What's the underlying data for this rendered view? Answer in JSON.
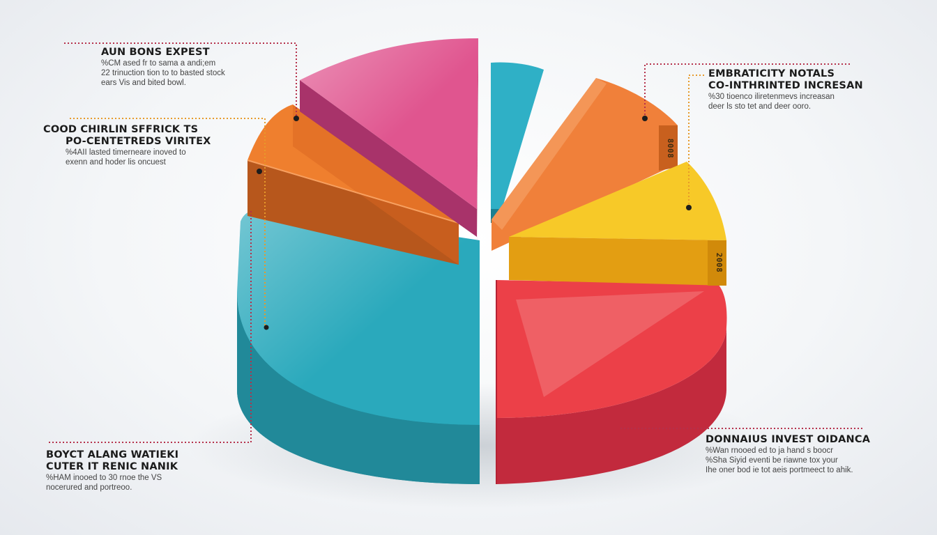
{
  "chart_data": {
    "type": "pie",
    "title": "",
    "style": "3d-exploded",
    "slices": [
      {
        "label": "AUN BONS EXPEST",
        "color": "#e0558f",
        "value": 12
      },
      {
        "label": "",
        "color": "#2fb0c6",
        "value": 3
      },
      {
        "label": "EMBRATICITY NOTALS CO-INTHRINTED INCRESAN",
        "color": "#f0803a",
        "value": 8,
        "side_label": "8008"
      },
      {
        "label": "",
        "color": "#f7c928",
        "value": 10,
        "side_label": "2008"
      },
      {
        "label": "DONNAIUS INVEST OIDANCA",
        "color": "#ec4048",
        "value": 25
      },
      {
        "label": "BOYCT ALANG WATIEKI CUTER IT RENIC NANIK",
        "color": "#2aa9bc",
        "value": 30
      },
      {
        "label": "COOD CHIRLIN SFFRICK TS PO-CENTETREDS VIRITEX",
        "color": "#ef7f2e",
        "value": 12
      }
    ],
    "legend": "callouts-around"
  },
  "callouts": {
    "top_left": {
      "title": "AUN BONS EXPEST",
      "lines": [
        "%CM ased fr to sama a andi;em",
        "22 trinuction tion to to basted stock",
        "ears Vis and bited bowl."
      ]
    },
    "mid_left": {
      "title1": "COOD CHIRLIN SFFRICK TS",
      "title2": "PO-CENTETREDS VIRITEX",
      "lines": [
        "%4AII lasted timerneare inoved to",
        "exenn and hoder lis oncuest"
      ]
    },
    "bottom_left": {
      "title1": "BOYCT ALANG WATIEKI",
      "title2": "CUTER IT RENIC NANIK",
      "lines": [
        "%HAM inooed to 30 rnoe the VS",
        "nocerured and portreoo."
      ]
    },
    "top_right": {
      "title1": "EMBRATICITY NOTALS",
      "title2": "CO-INTHRINTED INCRESAN",
      "lines": [
        "%30 tioenco iliretenmevs increasan",
        "deer ls sto tet and deer ooro."
      ]
    },
    "bottom_right": {
      "title": "DONNAIUS INVEST OIDANCA",
      "lines": [
        "%Wan rnooed ed to ja hand s boocr",
        "%Sha Siyid eventi be riawne tox your",
        "Ihe oner bod ie tot aeis portmeect to ahik."
      ]
    }
  },
  "colors": {
    "pink": "#e0558f",
    "cyan": "#2fb0c6",
    "orange": "#f0803a",
    "yellow": "#f7c928",
    "red": "#ec4048",
    "teal": "#2aa9bc",
    "leader_red": "#b5304a",
    "leader_orange": "#e79a2a"
  }
}
